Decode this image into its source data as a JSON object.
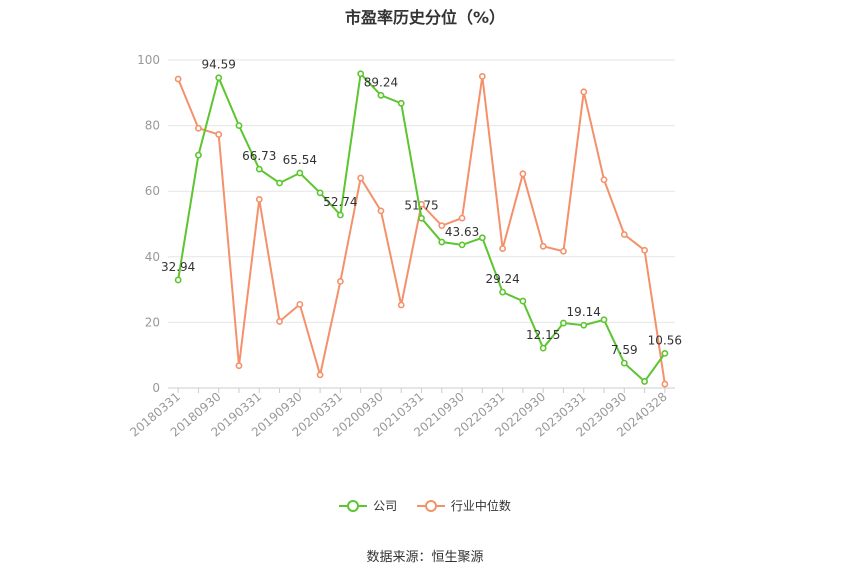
{
  "chart_data": {
    "type": "line",
    "title": "市盈率历史分位（%）",
    "source": "数据来源：恒生聚源",
    "ylim": [
      0,
      100
    ],
    "yticks": [
      0,
      20,
      40,
      60,
      80,
      100
    ],
    "grid": true,
    "legend_position": "bottom",
    "x": [
      "20180331",
      "20180630",
      "20180930",
      "20181231",
      "20190331",
      "20190630",
      "20190930",
      "20191231",
      "20200331",
      "20200630",
      "20200930",
      "20201231",
      "20210331",
      "20210630",
      "20210930",
      "20211231",
      "20220331",
      "20220630",
      "20220930",
      "20221231",
      "20230331",
      "20230630",
      "20230930",
      "20231231",
      "20240328"
    ],
    "xtick_labels": [
      "20180331",
      "20180930",
      "20190331",
      "20190930",
      "20200331",
      "20200930",
      "20210331",
      "20210930",
      "20220331",
      "20220930",
      "20230331",
      "20230930",
      "20240328"
    ],
    "series": [
      {
        "name": "公司",
        "color": "#5cc52f",
        "values": [
          32.94,
          71,
          94.59,
          80,
          66.73,
          62.5,
          65.54,
          59.5,
          52.74,
          95.8,
          89.24,
          86.8,
          51.75,
          44.5,
          43.63,
          45.8,
          29.24,
          26.5,
          12.15,
          19.8,
          19.14,
          20.8,
          7.59,
          2.0,
          10.56
        ],
        "labels": [
          "32.94",
          null,
          "94.59",
          null,
          "66.73",
          null,
          "65.54",
          null,
          "52.74",
          null,
          "89.24",
          null,
          "51.75",
          null,
          "43.63",
          null,
          "29.24",
          null,
          "12.15",
          null,
          "19.14",
          null,
          "7.59",
          null,
          "10.56"
        ]
      },
      {
        "name": "行业中位数",
        "color": "#f4916b",
        "values": [
          94.2,
          79.2,
          77.3,
          6.8,
          57.5,
          20.3,
          25.5,
          4.0,
          32.5,
          64.0,
          54.0,
          25.3,
          56.0,
          49.5,
          51.8,
          95.0,
          42.5,
          65.3,
          43.2,
          41.7,
          90.3,
          63.5,
          46.8,
          42.0,
          1.2
        ]
      }
    ]
  }
}
